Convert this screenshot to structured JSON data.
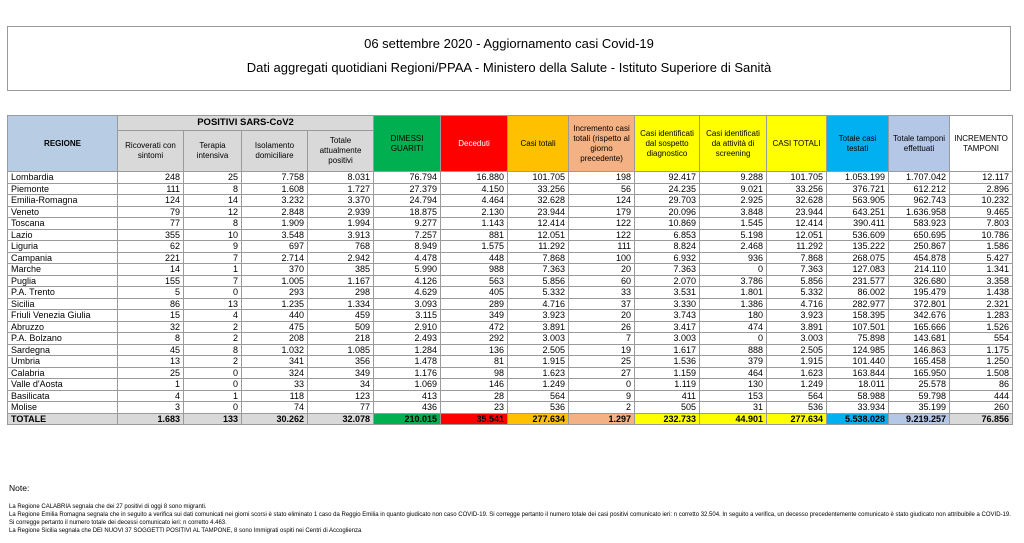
{
  "header": {
    "line1": "06 settembre 2020 - Aggiornamento casi Covid-19",
    "line2": "Dati aggregati quotidiani Regioni/PPAA - Ministero della Salute - Istituto Superiore di Sanità"
  },
  "table": {
    "headers": {
      "regione": "REGIONE",
      "group": "POSITIVI SARS-CoV2",
      "ricoverati": "Ricoverati con sintomi",
      "terapia": "Terapia intensiva",
      "isolamento": "Isolamento domiciliare",
      "totale_positivi": "Totale attualmente positivi",
      "dimessi": "DIMESSI GUARITI",
      "deceduti": "Deceduti",
      "casi_totali": "Casi totali",
      "incremento_casi": "Incremento casi totali (rispetto al giorno precedente)",
      "sospetto": "Casi identificati dal sospetto diagnostico",
      "screening": "Casi identificati da attività di screening",
      "casi_totali_caps": "CASI TOTALI",
      "totale_testati": "Totale casi testati",
      "tamponi": "Totale tamponi effettuati",
      "incremento_tamponi": "INCREMENTO TAMPONI"
    },
    "rows": [
      [
        "Lombardia",
        "248",
        "25",
        "7.758",
        "8.031",
        "76.794",
        "16.880",
        "101.705",
        "198",
        "92.417",
        "9.288",
        "101.705",
        "1.053.199",
        "1.707.042",
        "12.117"
      ],
      [
        "Piemonte",
        "111",
        "8",
        "1.608",
        "1.727",
        "27.379",
        "4.150",
        "33.256",
        "56",
        "24.235",
        "9.021",
        "33.256",
        "376.721",
        "612.212",
        "2.896"
      ],
      [
        "Emilia-Romagna",
        "124",
        "14",
        "3.232",
        "3.370",
        "24.794",
        "4.464",
        "32.628",
        "124",
        "29.703",
        "2.925",
        "32.628",
        "563.905",
        "962.743",
        "10.232"
      ],
      [
        "Veneto",
        "79",
        "12",
        "2.848",
        "2.939",
        "18.875",
        "2.130",
        "23.944",
        "179",
        "20.096",
        "3.848",
        "23.944",
        "643.251",
        "1.636.958",
        "9.465"
      ],
      [
        "Toscana",
        "77",
        "8",
        "1.909",
        "1.994",
        "9.277",
        "1.143",
        "12.414",
        "122",
        "10.869",
        "1.545",
        "12.414",
        "390.411",
        "583.923",
        "7.803"
      ],
      [
        "Lazio",
        "355",
        "10",
        "3.548",
        "3.913",
        "7.257",
        "881",
        "12.051",
        "122",
        "6.853",
        "5.198",
        "12.051",
        "536.609",
        "650.695",
        "10.786"
      ],
      [
        "Liguria",
        "62",
        "9",
        "697",
        "768",
        "8.949",
        "1.575",
        "11.292",
        "111",
        "8.824",
        "2.468",
        "11.292",
        "135.222",
        "250.867",
        "1.586"
      ],
      [
        "Campania",
        "221",
        "7",
        "2.714",
        "2.942",
        "4.478",
        "448",
        "7.868",
        "100",
        "6.932",
        "936",
        "7.868",
        "268.075",
        "454.878",
        "5.427"
      ],
      [
        "Marche",
        "14",
        "1",
        "370",
        "385",
        "5.990",
        "988",
        "7.363",
        "20",
        "7.363",
        "0",
        "7.363",
        "127.083",
        "214.110",
        "1.341"
      ],
      [
        "Puglia",
        "155",
        "7",
        "1.005",
        "1.167",
        "4.126",
        "563",
        "5.856",
        "60",
        "2.070",
        "3.786",
        "5.856",
        "231.577",
        "326.680",
        "3.358"
      ],
      [
        "P.A. Trento",
        "5",
        "0",
        "293",
        "298",
        "4.629",
        "405",
        "5.332",
        "33",
        "3.531",
        "1.801",
        "5.332",
        "86.002",
        "195.479",
        "1.438"
      ],
      [
        "Sicilia",
        "86",
        "13",
        "1.235",
        "1.334",
        "3.093",
        "289",
        "4.716",
        "37",
        "3.330",
        "1.386",
        "4.716",
        "282.977",
        "372.801",
        "2.321"
      ],
      [
        "Friuli Venezia Giulia",
        "15",
        "4",
        "440",
        "459",
        "3.115",
        "349",
        "3.923",
        "20",
        "3.743",
        "180",
        "3.923",
        "158.395",
        "342.676",
        "1.283"
      ],
      [
        "Abruzzo",
        "32",
        "2",
        "475",
        "509",
        "2.910",
        "472",
        "3.891",
        "26",
        "3.417",
        "474",
        "3.891",
        "107.501",
        "165.666",
        "1.526"
      ],
      [
        "P.A. Bolzano",
        "8",
        "2",
        "208",
        "218",
        "2.493",
        "292",
        "3.003",
        "7",
        "3.003",
        "0",
        "3.003",
        "75.898",
        "143.681",
        "554"
      ],
      [
        "Sardegna",
        "45",
        "8",
        "1.032",
        "1.085",
        "1.284",
        "136",
        "2.505",
        "19",
        "1.617",
        "888",
        "2.505",
        "124.985",
        "146.863",
        "1.175"
      ],
      [
        "Umbria",
        "13",
        "2",
        "341",
        "356",
        "1.478",
        "81",
        "1.915",
        "25",
        "1.536",
        "379",
        "1.915",
        "101.440",
        "165.458",
        "1.250"
      ],
      [
        "Calabria",
        "25",
        "0",
        "324",
        "349",
        "1.176",
        "98",
        "1.623",
        "27",
        "1.159",
        "464",
        "1.623",
        "163.844",
        "165.950",
        "1.508"
      ],
      [
        "Valle d'Aosta",
        "1",
        "0",
        "33",
        "34",
        "1.069",
        "146",
        "1.249",
        "0",
        "1.119",
        "130",
        "1.249",
        "18.011",
        "25.578",
        "86"
      ],
      [
        "Basilicata",
        "4",
        "1",
        "118",
        "123",
        "413",
        "28",
        "564",
        "9",
        "411",
        "153",
        "564",
        "58.988",
        "59.798",
        "444"
      ],
      [
        "Molise",
        "3",
        "0",
        "74",
        "77",
        "436",
        "23",
        "536",
        "2",
        "505",
        "31",
        "536",
        "33.934",
        "35.199",
        "260"
      ]
    ],
    "total": [
      "TOTALE",
      "1.683",
      "133",
      "30.262",
      "32.078",
      "210.015",
      "35.541",
      "277.634",
      "1.297",
      "232.733",
      "44.901",
      "277.634",
      "5.538.028",
      "9.219.257",
      "76.856"
    ]
  },
  "notes": {
    "title": "Note:",
    "lines": [
      "La Regione CALABRIA segnala che dei 27 positivi di oggi 8 sono migranti.",
      "La Regione Emilia Romagna segnala che in seguito a verifica sui dati comunicati nei giorni scorsi è stato eliminato 1 caso da Reggio Emilia in quanto giudicato non caso COVID-19. Si corregge pertanto il numero totale dei casi positivi comunicato ieri: n corretto 32.504. In seguito a verifica, un decesso precedentemente comunicato è stato giudicato non attribuibile a COVID-19. Si corregge pertanto il numero totale dei decessi comunicato ieri: n corretto 4.463.",
      "La Regione Sicilia segnala che DEI NUOVI 37 SOGGETTI POSITIVI AL TAMPONE, 8 sono Immigrati ospiti nei Centri di Accoglienza"
    ]
  }
}
